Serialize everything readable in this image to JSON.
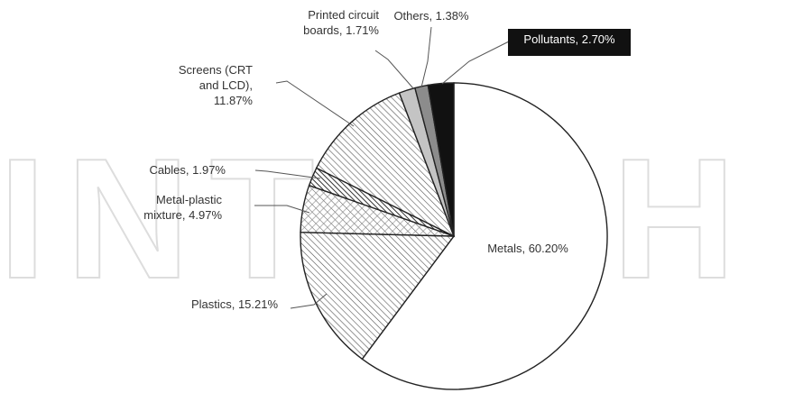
{
  "watermark": "INTECH",
  "chart_data": {
    "type": "pie",
    "slices": [
      {
        "key": "metals",
        "label_lines": [
          "Metals, 60.20%"
        ],
        "value": 60.2,
        "pattern": "none",
        "color": "#ffffff"
      },
      {
        "key": "plastics",
        "label_lines": [
          "Plastics, 15.21%"
        ],
        "value": 15.21,
        "pattern": "diag-dense",
        "color": "#ffffff"
      },
      {
        "key": "metal-plastic",
        "label_lines": [
          "Metal-plastic",
          "mixture, 4.97%"
        ],
        "value": 4.97,
        "pattern": "diag-cross",
        "color": "#ffffff"
      },
      {
        "key": "cables",
        "label_lines": [
          "Cables, 1.97%"
        ],
        "value": 1.97,
        "pattern": "diag-bold",
        "color": "#ffffff"
      },
      {
        "key": "screens",
        "label_lines": [
          "Screens (CRT",
          "and LCD),",
          "11.87%"
        ],
        "value": 11.87,
        "pattern": "diag-dense",
        "color": "#ffffff"
      },
      {
        "key": "pcb",
        "label_lines": [
          "Printed circuit",
          "boards, 1.71%"
        ],
        "value": 1.71,
        "pattern": "solid",
        "color": "#c4c4c4"
      },
      {
        "key": "others",
        "label_lines": [
          "Others, 1.38%"
        ],
        "value": 1.38,
        "pattern": "solid",
        "color": "#8c8c8c"
      },
      {
        "key": "pollutants",
        "label_lines": [
          "Pollutants, 2.70%"
        ],
        "value": 2.7,
        "pattern": "solid",
        "color": "#111111",
        "label_boxed": true
      }
    ],
    "start": "12 o'clock",
    "direction": "clockwise",
    "legend": "none"
  }
}
